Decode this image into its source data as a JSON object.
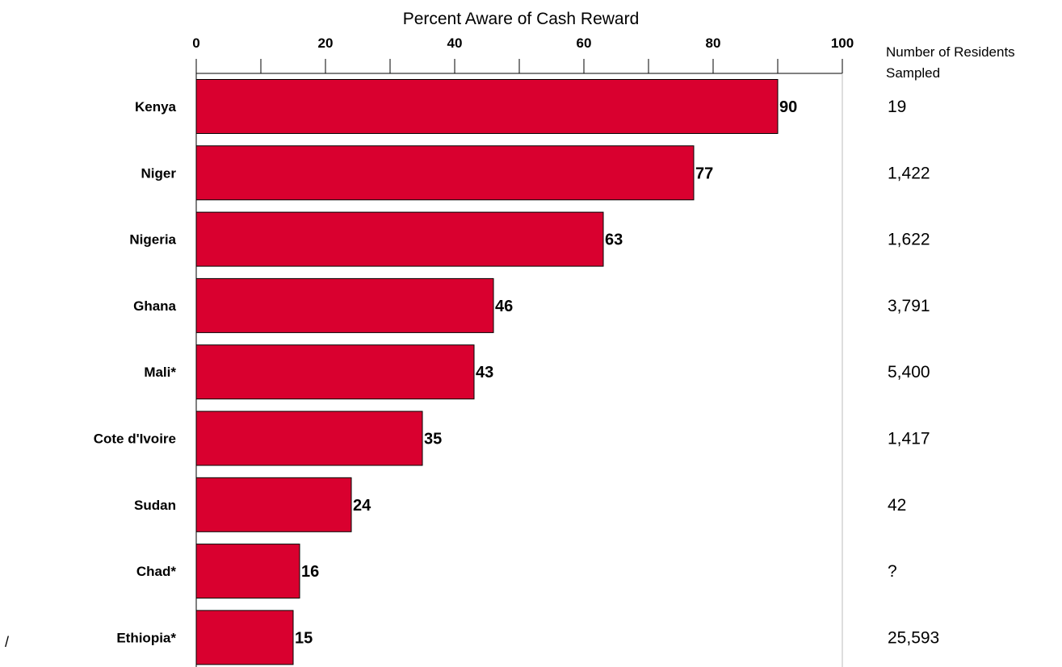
{
  "chart_data": {
    "type": "bar",
    "orientation": "horizontal",
    "title": "Percent Aware of Cash Reward",
    "xlim": [
      0,
      100
    ],
    "x_ticks": [
      0,
      20,
      40,
      60,
      80,
      100
    ],
    "categories": [
      "Kenya",
      "Niger",
      "Nigeria",
      "Ghana",
      "Mali*",
      "Cote d'Ivoire",
      "Sudan",
      "Chad*",
      "Ethiopia*"
    ],
    "values": [
      90,
      77,
      63,
      46,
      43,
      35,
      24,
      16,
      15
    ],
    "bar_color": "#d9002f",
    "legend": "none",
    "grid": false,
    "side_column": {
      "header": [
        "Number of Residents",
        "Sampled"
      ],
      "values": [
        "19",
        "1,422",
        "1,622",
        "3,791",
        "5,400",
        "1,417",
        "42",
        "?",
        "25,593"
      ]
    }
  },
  "stray_mark": "/"
}
